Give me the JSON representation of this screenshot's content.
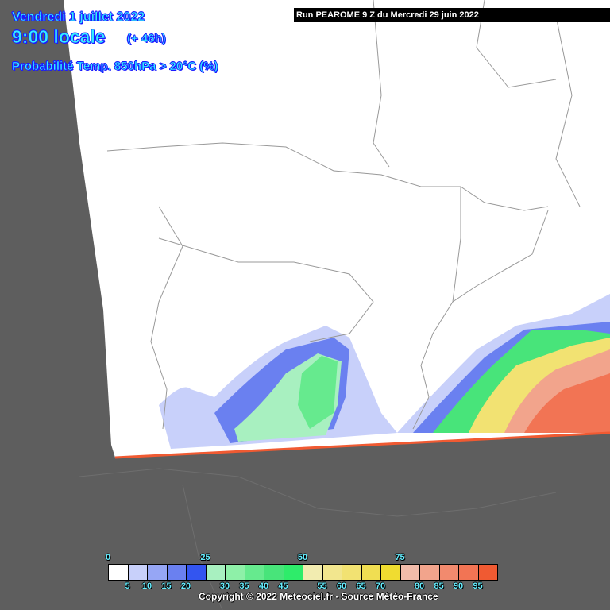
{
  "header": {
    "date": "Vendredi 1 juillet 2022",
    "time": "9:00 locale",
    "lead": "(+ 46h)",
    "parameter": "Probabilité Temp. 850hPa > 20°C (%)",
    "run": "Run PEAROME 9 Z du Mercredi 29 juin 2022"
  },
  "legend": {
    "colors": [
      "#ffffff",
      "#c8d0fa",
      "#96a6f5",
      "#6a80f0",
      "#3355f0",
      "#a8f0c0",
      "#8ef0a8",
      "#66ea8e",
      "#48e47a",
      "#2eec6a",
      "#f2ecb0",
      "#f2e68e",
      "#f2e272",
      "#f0de52",
      "#f0dc30",
      "#f2bcaa",
      "#f2a48c",
      "#f28a6e",
      "#f27454",
      "#f05a32"
    ],
    "top_labels": [
      "0",
      "25",
      "50",
      "75"
    ],
    "bottom_labels": [
      "5",
      "10",
      "15",
      "20",
      "30",
      "35",
      "40",
      "45",
      "55",
      "60",
      "65",
      "70",
      "80",
      "85",
      "90",
      "95"
    ]
  },
  "footer": {
    "copyright": "Copyright © 2022 Meteociel.fr - Source Météo-France"
  },
  "map": {
    "background": "#5e5e5e",
    "domain_fill": "#ffffff",
    "border_color": "#888888"
  }
}
